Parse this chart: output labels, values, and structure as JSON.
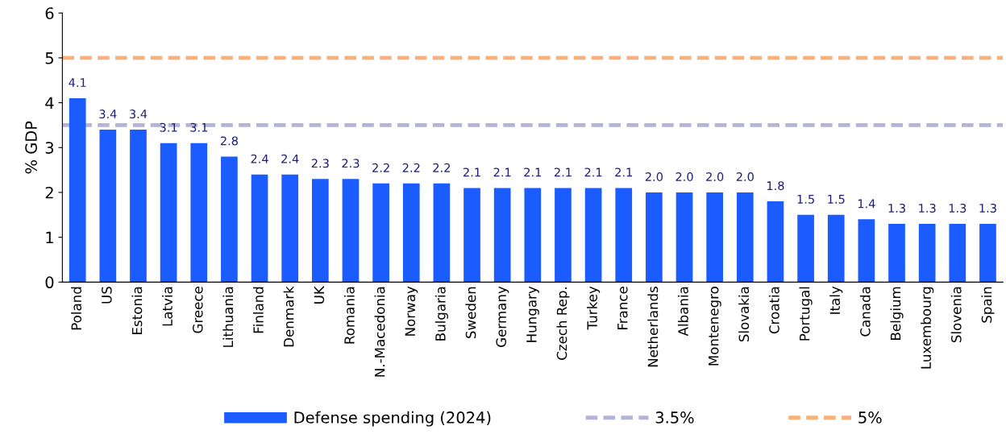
{
  "chart_data": {
    "type": "bar",
    "ylabel": "% GDP",
    "categories": [
      "Poland",
      "US",
      "Estonia",
      "Latvia",
      "Greece",
      "Lithuania",
      "Finland",
      "Denmark",
      "UK",
      "Romania",
      "N.-Macedonia",
      "Norway",
      "Bulgaria",
      "Sweden",
      "Germany",
      "Hungary",
      "Czech Rep.",
      "Turkey",
      "France",
      "Netherlands",
      "Albania",
      "Montenegro",
      "Slovakia",
      "Croatia",
      "Portugal",
      "Italy",
      "Canada",
      "Belgium",
      "Luxembourg",
      "Slovenia",
      "Spain"
    ],
    "series": [
      {
        "name": "Defense spending (2024)",
        "color": "#1a5cff",
        "values": [
          4.1,
          3.4,
          3.4,
          3.1,
          3.1,
          2.8,
          2.4,
          2.4,
          2.3,
          2.3,
          2.2,
          2.2,
          2.2,
          2.1,
          2.1,
          2.1,
          2.1,
          2.1,
          2.1,
          2.0,
          2.0,
          2.0,
          2.0,
          1.8,
          1.5,
          1.5,
          1.4,
          1.3,
          1.3,
          1.3,
          1.3
        ]
      }
    ],
    "value_labels": [
      "4.1",
      "3.4",
      "3.4",
      "3.1",
      "3.1",
      "2.8",
      "2.4",
      "2.4",
      "2.3",
      "2.3",
      "2.2",
      "2.2",
      "2.2",
      "2.1",
      "2.1",
      "2.1",
      "2.1",
      "2.1",
      "2.1",
      "2.0",
      "2.0",
      "2.0",
      "2.0",
      "1.8",
      "1.5",
      "1.5",
      "1.4",
      "1.3",
      "1.3",
      "1.3",
      "1.3"
    ],
    "ylim": [
      0,
      6
    ],
    "yticks": [
      0,
      1,
      2,
      3,
      4,
      5,
      6
    ],
    "ref_lines": [
      {
        "axis": "y",
        "value": 3.5,
        "label": "3.5%",
        "color": "#b4b4d8",
        "line_style": "dashed"
      },
      {
        "axis": "y",
        "value": 5,
        "label": "5%",
        "color": "#f8b07c",
        "line_style": "dashed"
      }
    ],
    "grid": false,
    "legend": "bottom"
  }
}
